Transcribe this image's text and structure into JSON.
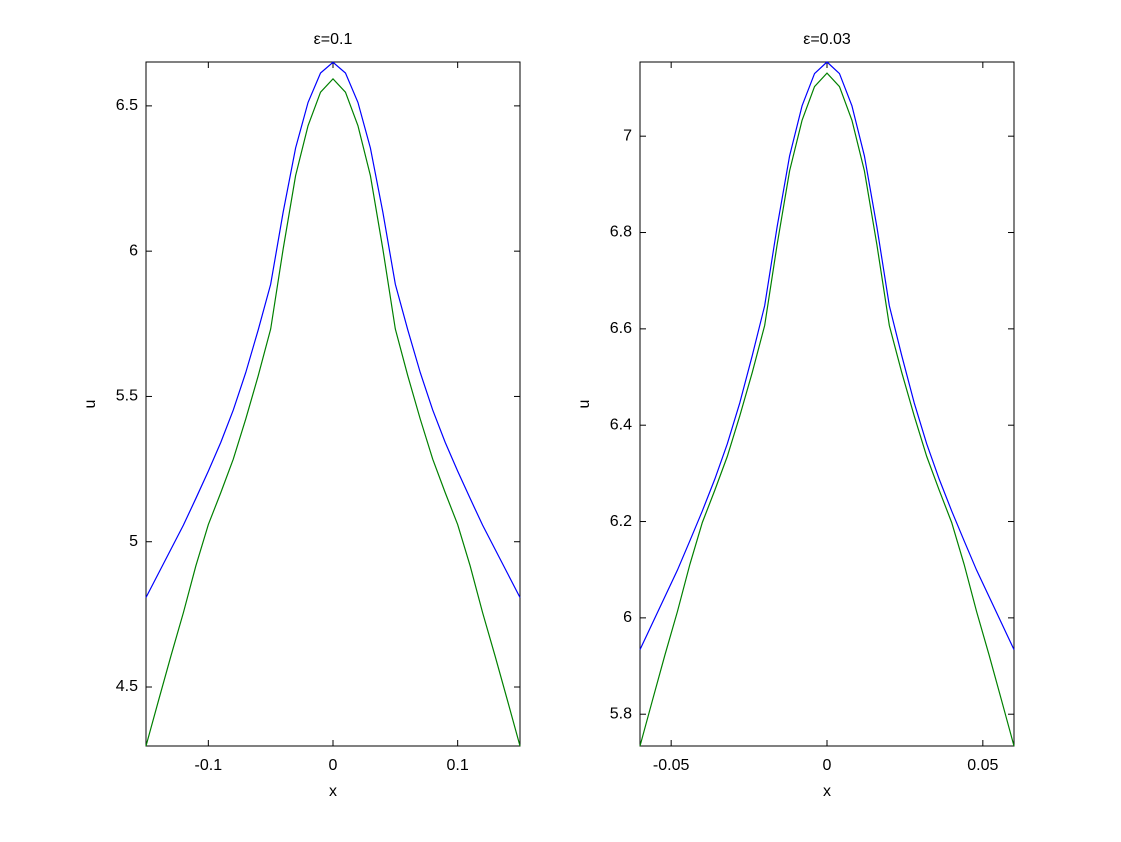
{
  "chart_data": [
    {
      "type": "line",
      "title": "ε=0.1",
      "x_label": "x",
      "y_label": "u",
      "x": [
        -0.15,
        -0.14,
        -0.13,
        -0.12,
        -0.11,
        -0.1,
        -0.09,
        -0.08,
        -0.07,
        -0.06,
        -0.05,
        -0.04,
        -0.03,
        -0.02,
        -0.01,
        0,
        0.01,
        0.02,
        0.03,
        0.04,
        0.05,
        0.06,
        0.07,
        0.08,
        0.09,
        0.1,
        0.11,
        0.12,
        0.13,
        0.14,
        0.15
      ],
      "series": [
        {
          "color": "#0000ff",
          "values": [
            4.808,
            4.891,
            4.974,
            5.057,
            5.149,
            5.243,
            5.342,
            5.453,
            5.582,
            5.729,
            5.886,
            6.134,
            6.355,
            6.512,
            6.613,
            6.65,
            6.613,
            6.512,
            6.355,
            6.134,
            5.886,
            5.729,
            5.582,
            5.453,
            5.342,
            5.243,
            5.149,
            5.057,
            4.974,
            4.891,
            4.808
          ]
        },
        {
          "color": "#008000",
          "values": [
            4.297,
            4.453,
            4.607,
            4.756,
            4.917,
            5.059,
            5.169,
            5.284,
            5.422,
            5.571,
            5.732,
            6.007,
            6.26,
            6.432,
            6.547,
            6.593,
            6.547,
            6.432,
            6.26,
            6.007,
            5.732,
            5.571,
            5.422,
            5.284,
            5.169,
            5.059,
            4.917,
            4.756,
            4.607,
            4.453,
            4.297
          ]
        }
      ],
      "xlim": [
        -0.15,
        0.15
      ],
      "xticks": [
        -0.1,
        0,
        0.1
      ],
      "ylim": [
        4.297,
        6.651
      ],
      "yticks": [
        4.5,
        5,
        5.5,
        6,
        6.5
      ]
    },
    {
      "type": "line",
      "title": "ε=0.03",
      "x_label": "x",
      "y_label": "u",
      "x": [
        -0.06,
        -0.056,
        -0.052,
        -0.048,
        -0.044,
        -0.04,
        -0.036,
        -0.032,
        -0.028,
        -0.024,
        -0.02,
        -0.016,
        -0.012,
        -0.008,
        -0.004,
        0,
        0.004,
        0.008,
        0.012,
        0.016,
        0.02,
        0.024,
        0.028,
        0.032,
        0.036,
        0.04,
        0.044,
        0.048,
        0.052,
        0.056,
        0.06
      ],
      "series": [
        {
          "color": "#0000ff",
          "values": [
            5.934,
            5.989,
            6.044,
            6.099,
            6.16,
            6.222,
            6.288,
            6.361,
            6.446,
            6.544,
            6.648,
            6.812,
            6.959,
            7.063,
            7.13,
            7.154,
            7.13,
            7.063,
            6.959,
            6.812,
            6.648,
            6.544,
            6.446,
            6.361,
            6.288,
            6.222,
            6.16,
            6.099,
            6.044,
            5.989,
            5.934
          ]
        },
        {
          "color": "#008000",
          "values": [
            5.734,
            5.829,
            5.923,
            6.013,
            6.111,
            6.198,
            6.265,
            6.335,
            6.419,
            6.509,
            6.607,
            6.775,
            6.928,
            7.033,
            7.103,
            7.131,
            7.103,
            7.033,
            6.928,
            6.775,
            6.607,
            6.509,
            6.419,
            6.335,
            6.265,
            6.198,
            6.111,
            6.013,
            5.923,
            5.829,
            5.734
          ]
        }
      ],
      "xlim": [
        -0.06,
        0.06
      ],
      "xticks": [
        -0.05,
        0,
        0.05
      ],
      "ylim": [
        5.734,
        7.154
      ],
      "yticks": [
        5.8,
        6,
        6.2,
        6.4,
        6.6,
        6.8,
        7
      ]
    }
  ]
}
